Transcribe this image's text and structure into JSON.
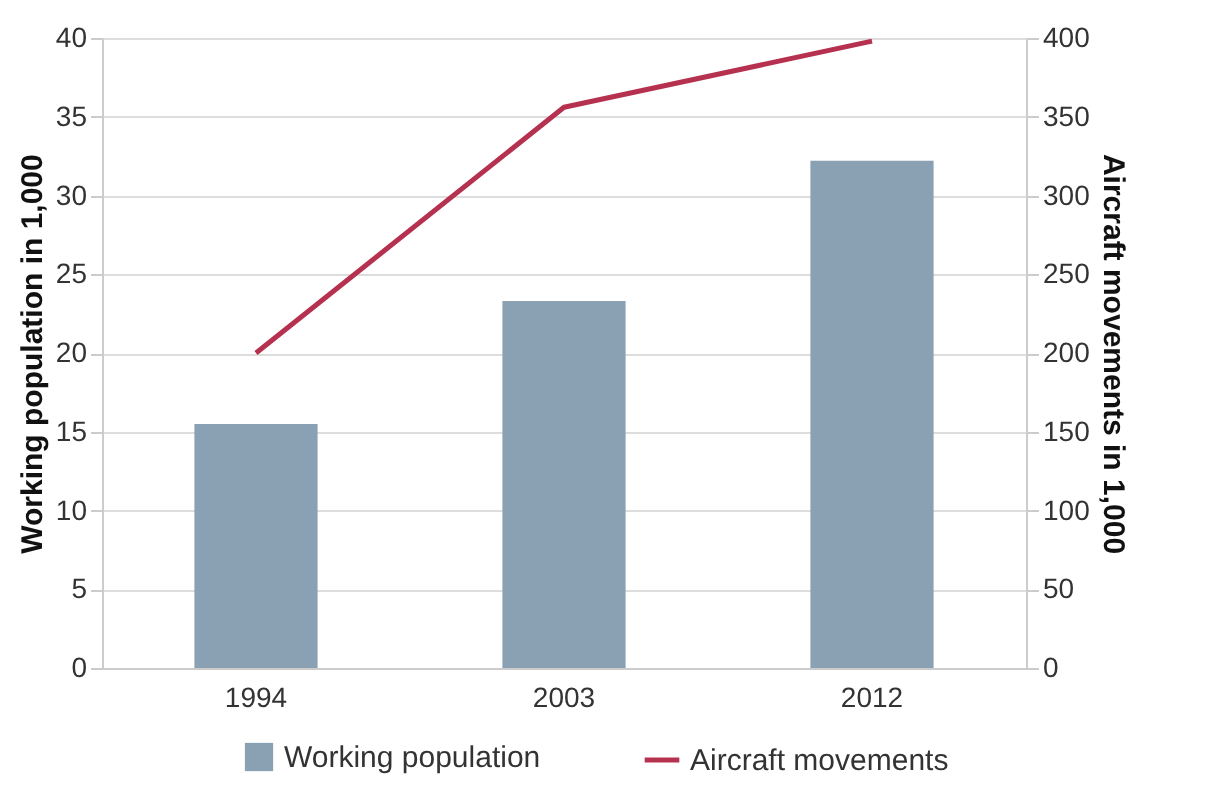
{
  "chart_data": {
    "type": "bar",
    "categories": [
      "1994",
      "2003",
      "2012"
    ],
    "series": [
      {
        "name": "Working population",
        "color": "#8aa1b3",
        "values": [
          15.5,
          23.3,
          32.2
        ]
      },
      {
        "name": "Aircraft movements",
        "type": "line",
        "axis": "y2",
        "color": "#b5314f",
        "values": [
          200,
          356,
          398
        ]
      }
    ],
    "ylabel": "Working population in 1,000",
    "y2label": "Aircraft movements in 1,000",
    "ylim": [
      0,
      40
    ],
    "yticks": [
      0,
      5,
      10,
      15,
      20,
      25,
      30,
      35,
      40
    ],
    "y2lim": [
      0,
      400
    ],
    "y2ticks": [
      0,
      50,
      100,
      150,
      200,
      250,
      300,
      350,
      400
    ],
    "grid": "y",
    "legend": "bottom"
  }
}
